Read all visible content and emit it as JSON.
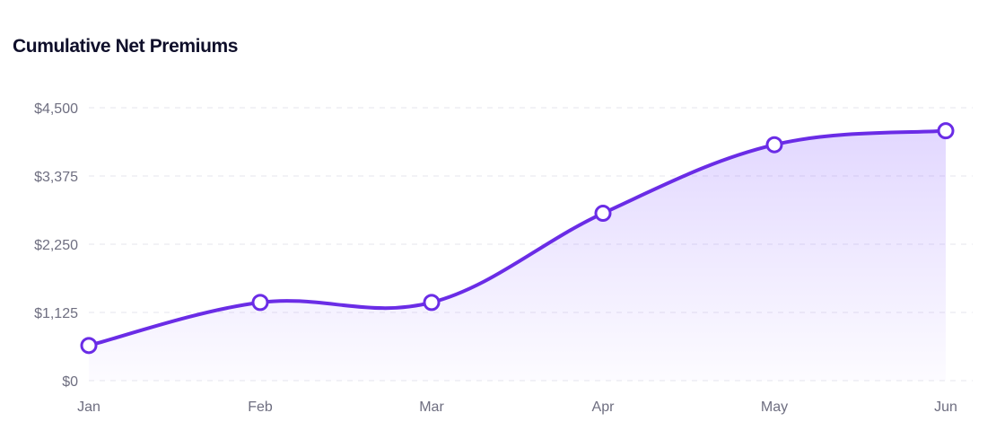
{
  "chart_data": {
    "type": "area",
    "title": "Cumulative Net Premiums",
    "xlabel": "",
    "ylabel": "",
    "categories": [
      "Jan",
      "Feb",
      "Mar",
      "Apr",
      "May",
      "Jun"
    ],
    "series": [
      {
        "values": [
          580,
          1290,
          1290,
          2760,
          3890,
          4120
        ]
      }
    ],
    "yticks": [
      0,
      1125,
      2250,
      3375,
      4500
    ],
    "ytick_labels": [
      "$0",
      "$1,125",
      "$2,250",
      "$3,375",
      "$4,500"
    ],
    "ylim": [
      0,
      4500
    ],
    "grid": true,
    "legend": "none",
    "colors": {
      "line": "#6a2ce6",
      "fill": "#7c4dff",
      "grid": "#e6e6ee",
      "marker_fill": "#ffffff"
    }
  }
}
